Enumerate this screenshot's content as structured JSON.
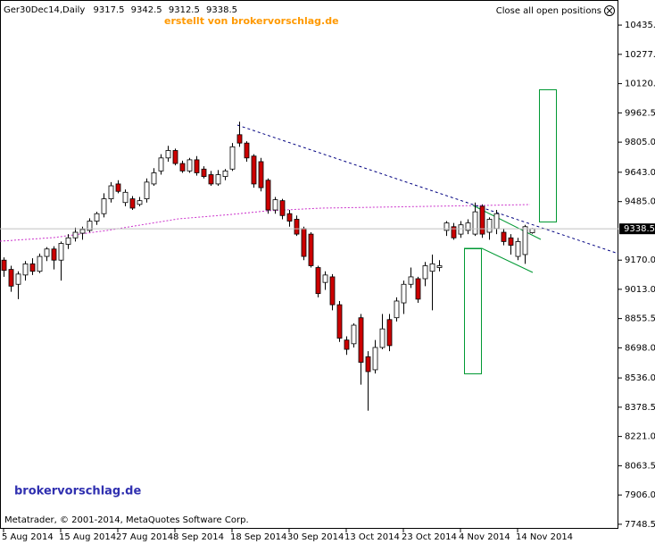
{
  "header": {
    "symbol": "Ger30Dec14,Daily",
    "close_all": "Close all open positions"
  },
  "chart_data": {
    "type": "candlestick",
    "subtitle": "erstellt von brokervorschlag.de",
    "watermark": "brokervorschlag.de",
    "copyright": "Metatrader, © 2001-2014, MetaQuotes Software Corp.",
    "categories": [
      "5 Aug 2014",
      null,
      null,
      null,
      null,
      null,
      null,
      null,
      "15 Aug 2014",
      null,
      null,
      null,
      null,
      null,
      null,
      null,
      "27 Aug 2014",
      null,
      null,
      null,
      null,
      null,
      null,
      null,
      "8 Sep 2014",
      null,
      null,
      null,
      null,
      null,
      null,
      null,
      "18 Sep 2014",
      null,
      null,
      null,
      null,
      null,
      null,
      null,
      "30 Sep 2014",
      null,
      null,
      null,
      null,
      null,
      null,
      null,
      "13 Oct 2014",
      null,
      null,
      null,
      null,
      null,
      null,
      null,
      "23 Oct 2014",
      null,
      null,
      null,
      null,
      null,
      null,
      null,
      "4 Nov 2014",
      null,
      null,
      null,
      null,
      null,
      null,
      null,
      "14 Nov 2014",
      null,
      null
    ],
    "open": [
      9170,
      9120,
      9040,
      9090,
      9150,
      9110,
      9190,
      9230,
      9170,
      9255,
      9290,
      9315,
      9330,
      9380,
      9420,
      9500,
      9580,
      9480,
      9500,
      9470,
      9500,
      9580,
      9650,
      9720,
      9760,
      9690,
      9650,
      9710,
      9660,
      9630,
      9580,
      9620,
      9660,
      9845,
      9800,
      9730,
      9700,
      9600,
      9440,
      9490,
      9420,
      9390,
      9340,
      9310,
      9130,
      9050,
      9080,
      8930,
      8740,
      8720,
      8860,
      8650,
      8580,
      8700,
      8850,
      8860,
      8940,
      9040,
      9070,
      9070,
      9110,
      9130,
      9330,
      9350,
      9310,
      9330,
      9310,
      9460,
      9320,
      9340,
      9320,
      9290,
      9190,
      9200,
      9317.5
    ],
    "high": [
      9185,
      9140,
      9110,
      9165,
      9180,
      9205,
      9240,
      9245,
      9270,
      9310,
      9345,
      9350,
      9395,
      9430,
      9530,
      9590,
      9600,
      9550,
      9515,
      9510,
      9610,
      9665,
      9740,
      9785,
      9770,
      9705,
      9720,
      9730,
      9675,
      9650,
      9655,
      9660,
      9800,
      9915,
      9810,
      9740,
      9720,
      9610,
      9510,
      9500,
      9440,
      9410,
      9350,
      9320,
      9140,
      9110,
      9095,
      8950,
      8760,
      8830,
      8880,
      8680,
      8740,
      8880,
      8880,
      8970,
      9060,
      9130,
      9080,
      9160,
      9200,
      9170,
      9380,
      9370,
      9380,
      9390,
      9480,
      9470,
      9400,
      9440,
      9340,
      9310,
      9290,
      9360,
      9342.5
    ],
    "low": [
      9080,
      9000,
      8960,
      9060,
      9090,
      9100,
      9165,
      9120,
      9060,
      9230,
      9270,
      9280,
      9320,
      9360,
      9400,
      9480,
      9530,
      9460,
      9440,
      9460,
      9480,
      9570,
      9630,
      9700,
      9680,
      9640,
      9640,
      9625,
      9610,
      9570,
      9570,
      9600,
      9650,
      9780,
      9700,
      9560,
      9540,
      9420,
      9420,
      9390,
      9350,
      9300,
      9170,
      9130,
      8970,
      9010,
      8900,
      8730,
      8660,
      8700,
      8500,
      8360,
      8560,
      8690,
      8680,
      8840,
      8880,
      9020,
      8940,
      9030,
      8900,
      9110,
      9300,
      9280,
      9290,
      9310,
      9300,
      9290,
      9280,
      9310,
      9250,
      9200,
      9170,
      9150,
      9312.5
    ],
    "close": [
      9115,
      9030,
      9095,
      9150,
      9110,
      9190,
      9230,
      9170,
      9260,
      9290,
      9320,
      9335,
      9380,
      9420,
      9500,
      9570,
      9540,
      9535,
      9450,
      9490,
      9590,
      9640,
      9720,
      9760,
      9690,
      9650,
      9710,
      9640,
      9620,
      9580,
      9630,
      9650,
      9780,
      9800,
      9720,
      9580,
      9560,
      9440,
      9495,
      9410,
      9380,
      9310,
      9190,
      9140,
      8990,
      9090,
      8930,
      8750,
      8690,
      8820,
      8620,
      8570,
      8700,
      8800,
      8710,
      8950,
      9040,
      9080,
      8960,
      9140,
      9150,
      9140,
      9370,
      9290,
      9360,
      9370,
      9430,
      9310,
      9390,
      9420,
      9270,
      9250,
      9270,
      9350,
      9338.5
    ],
    "up_color": "#ffffff",
    "down_color": "#cc0000",
    "ylim": [
      7724,
      10570
    ],
    "yticks": [
      {
        "value": 10435,
        "label": "10435.0"
      },
      {
        "value": 10277.5,
        "label": "10277.5"
      },
      {
        "value": 10120,
        "label": "10120.0"
      },
      {
        "value": 9962.5,
        "label": "9962.5"
      },
      {
        "value": 9805,
        "label": "9805.0"
      },
      {
        "value": 9643,
        "label": "9643.0"
      },
      {
        "value": 9485,
        "label": "9485.0"
      },
      {
        "value": 9170,
        "label": "9170.0"
      },
      {
        "value": 9013,
        "label": "9013.0"
      },
      {
        "value": 8855.5,
        "label": "8855.5"
      },
      {
        "value": 8698,
        "label": "8698.0"
      },
      {
        "value": 8536,
        "label": "8536.0"
      },
      {
        "value": 8378.5,
        "label": "8378.5"
      },
      {
        "value": 8221,
        "label": "8221.0"
      },
      {
        "value": 8063.5,
        "label": "8063.5"
      },
      {
        "value": 7906,
        "label": "7906.0"
      },
      {
        "value": 7748.5,
        "label": "7748.5"
      }
    ],
    "last_price_line": true
  }
}
